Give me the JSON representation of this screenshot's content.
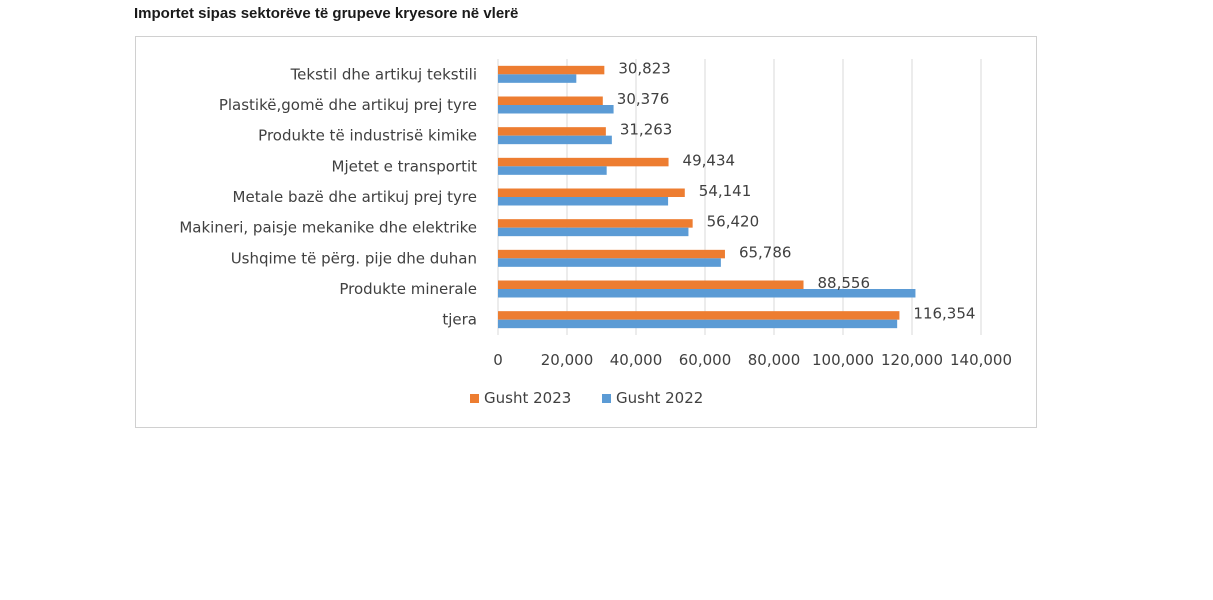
{
  "page": {
    "title": "Importet sipas sektorëve të grupeve kryesore në vlerë"
  },
  "chart_data": {
    "type": "bar",
    "orientation": "horizontal",
    "title": "",
    "xlabel": "",
    "ylabel": "",
    "xlim": [
      0,
      140000
    ],
    "x_ticks": [
      0,
      20000,
      40000,
      60000,
      80000,
      100000,
      120000,
      140000
    ],
    "x_tick_labels": [
      "0",
      "20,000",
      "40,000",
      "60,000",
      "80,000",
      "100,000",
      "120,000",
      "140,000"
    ],
    "grid": "vertical",
    "legend_position": "bottom",
    "categories": [
      "Tekstil dhe artikuj tekstili",
      "Plastikë,gomë dhe artikuj prej tyre",
      "Produkte të industrisë kimike",
      "Mjetet e transportit",
      "Metale bazë dhe artikuj prej tyre",
      "Makineri, paisje mekanike dhe elektrike",
      "Ushqime të përg. pije dhe duhan",
      "Produkte minerale",
      "tjera"
    ],
    "series": [
      {
        "name": "Gusht 2023",
        "color": "#ED7D31",
        "values": [
          30823,
          30376,
          31263,
          49434,
          54141,
          56420,
          65786,
          88556,
          116354
        ],
        "data_labels": [
          "30,823",
          "30,376",
          "31,263",
          "49,434",
          "54,141",
          "56,420",
          "65,786",
          "88,556",
          "116,354"
        ]
      },
      {
        "name": "Gusht 2022",
        "color": "#5B9BD5",
        "values": [
          22700,
          33500,
          33000,
          31500,
          49300,
          55200,
          64600,
          121000,
          115700
        ]
      }
    ]
  }
}
